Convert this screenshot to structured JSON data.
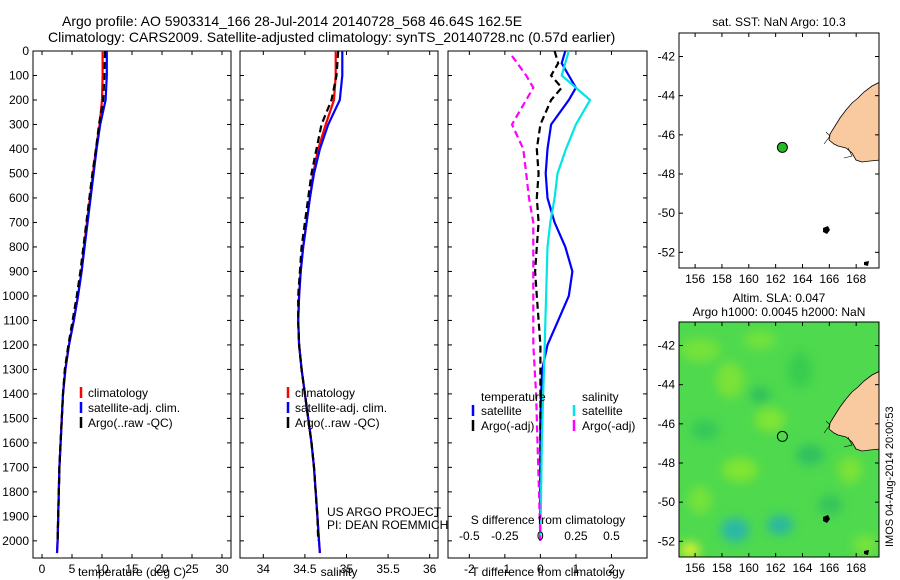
{
  "title": {
    "line1": "Argo profile: AO 5903314_166 28-Jul-2014 20140728_568 46.64S 162.5E",
    "line2": "Climatology: CARS2009. Satellite-adjusted climatology: synTS_20140728.nc (0.57d earlier)"
  },
  "credit": "IMOS 04-Aug-2014 20:00:53",
  "colors": {
    "climatology": "#ff0000",
    "satellite": "#0000ff",
    "argo": "#000000",
    "sat_salinity": "#00e5e5",
    "argo_salinity": "#ff00ff",
    "land": "#f9c99f",
    "argo_marker": "#22bb22"
  },
  "chart_data": [
    {
      "type": "line",
      "name": "temperature-panel",
      "xlabel": "temperature (deg C)",
      "xlim": [
        -1.5,
        31.5
      ],
      "ylim": [
        2070,
        0
      ],
      "xticks": [
        0,
        5,
        10,
        15,
        20,
        25,
        30
      ],
      "yticks": [
        0,
        100,
        200,
        300,
        400,
        500,
        600,
        700,
        800,
        900,
        1000,
        1100,
        1200,
        1300,
        1400,
        1500,
        1600,
        1700,
        1800,
        1900,
        2000
      ],
      "legend": {
        "placement": "lower-middle",
        "entries": [
          "climatology",
          "satellite-adj. clim.",
          "Argo(..raw -QC)"
        ]
      },
      "series": [
        {
          "name": "climatology",
          "color": "#ff0000",
          "dash": false,
          "points": [
            [
              10.1,
              0
            ],
            [
              10.1,
              100
            ],
            [
              10.0,
              200
            ],
            [
              9.6,
              300
            ],
            [
              9.0,
              400
            ],
            [
              8.5,
              500
            ],
            [
              8.0,
              600
            ],
            [
              7.5,
              700
            ],
            [
              7.0,
              800
            ],
            [
              6.6,
              900
            ],
            [
              6.0,
              1000
            ],
            [
              5.3,
              1100
            ],
            [
              4.5,
              1200
            ],
            [
              3.9,
              1300
            ],
            [
              3.5,
              1400
            ],
            [
              3.3,
              1500
            ],
            [
              3.1,
              1600
            ],
            [
              2.9,
              1700
            ],
            [
              2.8,
              1800
            ],
            [
              2.7,
              1900
            ],
            [
              2.6,
              2000
            ],
            [
              2.5,
              2050
            ]
          ]
        },
        {
          "name": "satellite-adj. clim.",
          "color": "#0000ff",
          "dash": false,
          "points": [
            [
              10.8,
              0
            ],
            [
              10.8,
              100
            ],
            [
              10.6,
              200
            ],
            [
              9.7,
              300
            ],
            [
              9.1,
              400
            ],
            [
              8.6,
              500
            ],
            [
              8.1,
              600
            ],
            [
              7.6,
              700
            ],
            [
              7.1,
              800
            ],
            [
              6.6,
              900
            ],
            [
              6.0,
              1000
            ],
            [
              5.3,
              1100
            ],
            [
              4.5,
              1200
            ],
            [
              3.9,
              1300
            ],
            [
              3.5,
              1400
            ],
            [
              3.3,
              1500
            ],
            [
              3.1,
              1600
            ],
            [
              2.9,
              1700
            ],
            [
              2.8,
              1800
            ],
            [
              2.7,
              1900
            ],
            [
              2.6,
              2000
            ],
            [
              2.5,
              2050
            ]
          ]
        },
        {
          "name": "Argo(..raw -QC)",
          "color": "#000000",
          "dash": true,
          "points": [
            [
              10.5,
              0
            ],
            [
              10.4,
              100
            ],
            [
              10.2,
              200
            ],
            [
              9.5,
              300
            ],
            [
              9.0,
              400
            ],
            [
              8.4,
              500
            ],
            [
              7.9,
              600
            ],
            [
              7.4,
              700
            ],
            [
              6.9,
              800
            ],
            [
              6.4,
              900
            ],
            [
              5.8,
              1000
            ],
            [
              5.1,
              1100
            ],
            [
              4.4,
              1200
            ],
            [
              3.8,
              1300
            ],
            [
              3.5,
              1400
            ],
            [
              3.3,
              1500
            ],
            [
              3.1,
              1600
            ],
            [
              2.9,
              1700
            ],
            [
              2.8,
              1800
            ],
            [
              2.7,
              1900
            ],
            [
              2.6,
              2000
            ]
          ]
        }
      ]
    },
    {
      "type": "line",
      "name": "salinity-panel",
      "xlabel": "salinity",
      "xlim": [
        33.72,
        36.1
      ],
      "ylim": [
        2070,
        0
      ],
      "xticks": [
        34,
        34.5,
        35,
        35.5,
        36
      ],
      "legend": {
        "placement": "lower-middle",
        "entries": [
          "climatology",
          "satellite-adj. clim.",
          "Argo(..raw -QC)"
        ]
      },
      "annotation": [
        "US ARGO PROJECT",
        "PI: DEAN ROEMMICH"
      ],
      "series": [
        {
          "name": "climatology",
          "color": "#ff0000",
          "dash": false,
          "points": [
            [
              34.87,
              0
            ],
            [
              34.87,
              100
            ],
            [
              34.85,
              200
            ],
            [
              34.75,
              300
            ],
            [
              34.66,
              400
            ],
            [
              34.6,
              500
            ],
            [
              34.56,
              600
            ],
            [
              34.52,
              700
            ],
            [
              34.48,
              800
            ],
            [
              34.45,
              900
            ],
            [
              34.43,
              1000
            ],
            [
              34.42,
              1100
            ],
            [
              34.43,
              1200
            ],
            [
              34.46,
              1300
            ],
            [
              34.5,
              1400
            ],
            [
              34.54,
              1500
            ],
            [
              34.58,
              1600
            ],
            [
              34.61,
              1700
            ],
            [
              34.63,
              1800
            ],
            [
              34.65,
              1900
            ],
            [
              34.67,
              2000
            ],
            [
              34.68,
              2050
            ]
          ]
        },
        {
          "name": "satellite-adj. clim.",
          "color": "#0000ff",
          "dash": false,
          "points": [
            [
              34.95,
              0
            ],
            [
              34.95,
              100
            ],
            [
              34.92,
              200
            ],
            [
              34.78,
              300
            ],
            [
              34.68,
              400
            ],
            [
              34.61,
              500
            ],
            [
              34.56,
              600
            ],
            [
              34.52,
              700
            ],
            [
              34.48,
              800
            ],
            [
              34.45,
              900
            ],
            [
              34.43,
              1000
            ],
            [
              34.42,
              1100
            ],
            [
              34.43,
              1200
            ],
            [
              34.46,
              1300
            ],
            [
              34.5,
              1400
            ],
            [
              34.54,
              1500
            ],
            [
              34.58,
              1600
            ],
            [
              34.61,
              1700
            ],
            [
              34.63,
              1800
            ],
            [
              34.65,
              1900
            ],
            [
              34.67,
              2000
            ],
            [
              34.68,
              2050
            ]
          ]
        },
        {
          "name": "Argo(..raw -QC)",
          "color": "#000000",
          "dash": true,
          "points": [
            [
              34.9,
              0
            ],
            [
              34.88,
              100
            ],
            [
              34.82,
              200
            ],
            [
              34.7,
              300
            ],
            [
              34.64,
              400
            ],
            [
              34.58,
              500
            ],
            [
              34.54,
              600
            ],
            [
              34.5,
              700
            ],
            [
              34.46,
              800
            ],
            [
              34.44,
              900
            ],
            [
              34.42,
              1000
            ],
            [
              34.42,
              1100
            ],
            [
              34.43,
              1200
            ],
            [
              34.46,
              1300
            ],
            [
              34.5,
              1400
            ],
            [
              34.54,
              1500
            ],
            [
              34.58,
              1600
            ],
            [
              34.61,
              1700
            ],
            [
              34.63,
              1800
            ],
            [
              34.65,
              1900
            ],
            [
              34.66,
              2000
            ]
          ]
        }
      ]
    },
    {
      "type": "line",
      "name": "difference-panel",
      "xlabel": "T difference from climatology",
      "xlabel2": "S difference from climatology",
      "xlim": [
        -2.6,
        3.0
      ],
      "ylim": [
        2070,
        0
      ],
      "xticks": [
        -2,
        -1,
        0,
        1,
        2
      ],
      "xticks2": [
        -0.5,
        -0.25,
        0,
        0.25,
        0.5
      ],
      "legend": {
        "placement": "lower-middle",
        "headers": [
          "temperature",
          "salinity"
        ],
        "entries": [
          "satellite",
          "Argo(-adj)",
          "satellite",
          "Argo(-adj)"
        ]
      },
      "series": [
        {
          "name": "temperature satellite",
          "color": "#0000ff",
          "dash": false,
          "points": [
            [
              0.7,
              0
            ],
            [
              0.6,
              50
            ],
            [
              0.8,
              100
            ],
            [
              1.0,
              150
            ],
            [
              0.8,
              200
            ],
            [
              0.3,
              300
            ],
            [
              0.2,
              400
            ],
            [
              0.15,
              500
            ],
            [
              0.2,
              600
            ],
            [
              0.4,
              700
            ],
            [
              0.7,
              800
            ],
            [
              0.9,
              900
            ],
            [
              0.8,
              1000
            ],
            [
              0.5,
              1100
            ],
            [
              0.2,
              1200
            ],
            [
              0.05,
              1300
            ],
            [
              0.02,
              1400
            ],
            [
              0.0,
              1500
            ],
            [
              0.0,
              2000
            ]
          ]
        },
        {
          "name": "temperature Argo(-adj)",
          "color": "#000000",
          "dash": true,
          "points": [
            [
              0.4,
              0
            ],
            [
              0.5,
              50
            ],
            [
              0.3,
              100
            ],
            [
              0.6,
              150
            ],
            [
              0.3,
              200
            ],
            [
              0.0,
              300
            ],
            [
              -0.1,
              400
            ],
            [
              -0.05,
              500
            ],
            [
              -0.1,
              600
            ],
            [
              -0.05,
              700
            ],
            [
              -0.1,
              800
            ],
            [
              -0.15,
              900
            ],
            [
              -0.1,
              1000
            ],
            [
              -0.05,
              1100
            ],
            [
              0.0,
              1200
            ],
            [
              0.0,
              1400
            ],
            [
              0.0,
              2000
            ]
          ]
        },
        {
          "name": "salinity satellite",
          "color": "#00e5e5",
          "dash": false,
          "points": [
            [
              0.2,
              0
            ],
            [
              0.15,
              100
            ],
            [
              0.35,
              200
            ],
            [
              0.3,
              250
            ],
            [
              0.25,
              300
            ],
            [
              0.18,
              400
            ],
            [
              0.12,
              500
            ],
            [
              0.1,
              600
            ],
            [
              0.07,
              700
            ],
            [
              0.05,
              800
            ],
            [
              0.04,
              1000
            ],
            [
              0.03,
              1200
            ],
            [
              0.02,
              1400
            ],
            [
              0.01,
              1600
            ],
            [
              0.0,
              2000
            ]
          ]
        },
        {
          "name": "salinity Argo(-adj)",
          "color": "#ff00ff",
          "dash": true,
          "points": [
            [
              -0.2,
              20
            ],
            [
              -0.15,
              60
            ],
            [
              -0.1,
              100
            ],
            [
              -0.05,
              150
            ],
            [
              -0.15,
              250
            ],
            [
              -0.2,
              300
            ],
            [
              -0.12,
              400
            ],
            [
              -0.1,
              500
            ],
            [
              -0.08,
              600
            ],
            [
              -0.05,
              700
            ],
            [
              -0.05,
              800
            ],
            [
              -0.05,
              900
            ],
            [
              -0.05,
              1000
            ],
            [
              -0.05,
              1200
            ],
            [
              -0.03,
              1400
            ],
            [
              -0.02,
              1600
            ],
            [
              -0.01,
              1800
            ],
            [
              0.0,
              2000
            ]
          ]
        }
      ]
    },
    {
      "type": "scatter",
      "name": "sst-map",
      "title": "sat. SST: NaN Argo: 10.3",
      "xlim": [
        154.8,
        169.7
      ],
      "ylim": [
        -52.8,
        -40.8
      ],
      "xticks": [
        156,
        158,
        160,
        162,
        164,
        166,
        168
      ],
      "yticks": [
        -42,
        -44,
        -46,
        -48,
        -50,
        -52
      ],
      "argo_position": {
        "lon": 162.5,
        "lat": -46.64
      }
    },
    {
      "type": "heatmap",
      "name": "sla-map",
      "title": [
        "Altim. SLA: 0.047",
        "Argo h1000: 0.0045 h2000: NaN"
      ],
      "xlim": [
        154.8,
        169.7
      ],
      "ylim": [
        -52.8,
        -40.8
      ],
      "xticks": [
        156,
        158,
        160,
        162,
        164,
        166,
        168
      ],
      "yticks": [
        -42,
        -44,
        -46,
        -48,
        -50,
        -52
      ],
      "argo_position": {
        "lon": 162.5,
        "lat": -46.64
      }
    }
  ]
}
